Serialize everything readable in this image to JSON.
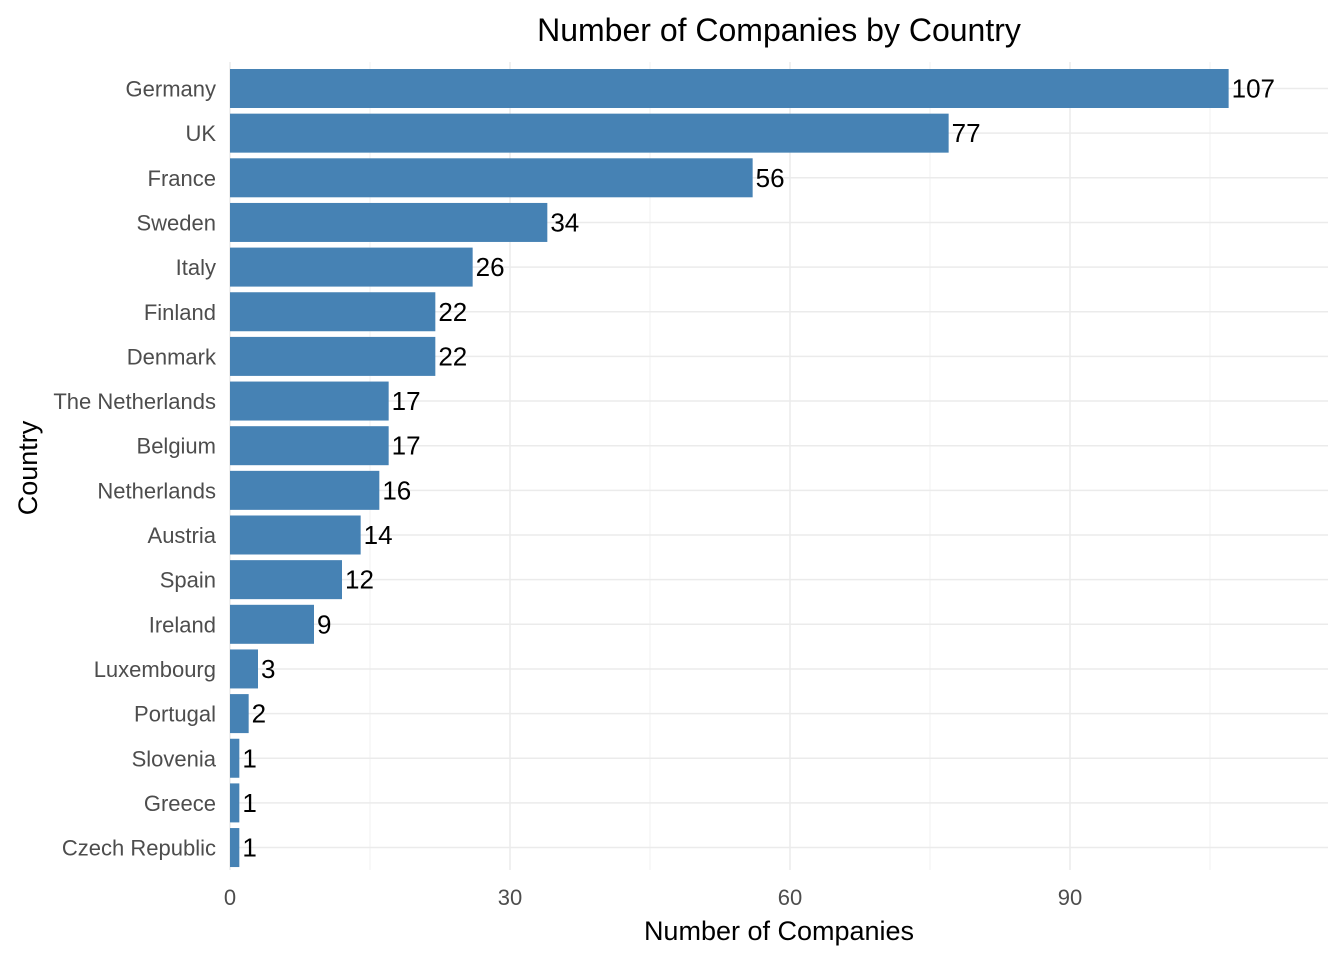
{
  "chart_data": {
    "type": "bar",
    "orientation": "horizontal",
    "title": "Number of Companies by Country",
    "xlabel": "Number of Companies",
    "ylabel": "Country",
    "categories": [
      "Germany",
      "UK",
      "France",
      "Sweden",
      "Italy",
      "Finland",
      "Denmark",
      "The Netherlands",
      "Belgium",
      "Netherlands",
      "Austria",
      "Spain",
      "Ireland",
      "Luxembourg",
      "Portugal",
      "Slovenia",
      "Greece",
      "Czech Republic"
    ],
    "values": [
      107,
      77,
      56,
      34,
      26,
      22,
      22,
      17,
      17,
      16,
      14,
      12,
      9,
      3,
      2,
      1,
      1,
      1
    ],
    "xlim": [
      0,
      117
    ],
    "xticks": [
      0,
      30,
      60,
      90
    ],
    "bar_color": "#4682b4",
    "grid": true,
    "data_labels": true
  }
}
